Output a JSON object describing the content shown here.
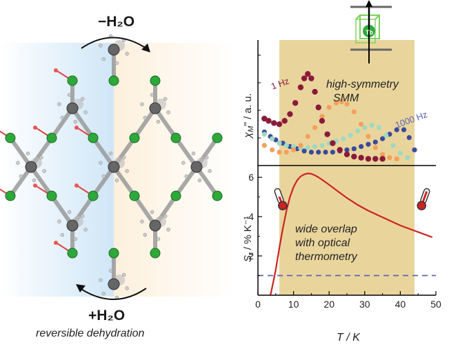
{
  "left_panel": {
    "top_label": "−H₂O",
    "bottom_label": "+H₂O",
    "caption": "reversible dehydration"
  },
  "ion_label": "Tb",
  "annotations": {
    "smm_line1": "high-symmetry",
    "smm_line2": "SMM",
    "overlap_line1": "wide overlap",
    "overlap_line2": "with optical",
    "overlap_line3": "thermometry"
  },
  "colors": {
    "highlight_band": "#e9d59c",
    "series_1hz": "#8b1a3a",
    "series_orange": "#f4a05a",
    "series_teal": "#9ed9c0",
    "series_1000hz": "#3b4a9c",
    "sensitivity_curve": "#cc2222",
    "reference_line": "#5a64b4",
    "water_side": "#d8ebf8",
    "dehydrated_side": "#fdf3e3",
    "metal_node": "#2ea83a",
    "linker_node": "#666666"
  },
  "chart_data": [
    {
      "type": "scatter",
      "ylabel": "χM'' / a. u.",
      "ylabel_main": "χ",
      "ylabel_sub": "M",
      "ylabel_rest": "'' / a. u.",
      "xlim": [
        0,
        50
      ],
      "highlight_range": [
        6,
        44
      ],
      "series": [
        {
          "name": "1 Hz",
          "color": "#8b1a3a",
          "x": [
            1.8,
            3,
            4.5,
            6,
            7.5,
            9,
            10.5,
            12,
            13,
            14,
            15,
            16,
            17,
            18,
            19.5,
            21,
            23,
            25,
            27,
            29,
            31,
            33,
            35
          ],
          "y": [
            0.42,
            0.4,
            0.38,
            0.37,
            0.4,
            0.46,
            0.56,
            0.7,
            0.78,
            0.82,
            0.78,
            0.66,
            0.52,
            0.4,
            0.28,
            0.2,
            0.14,
            0.1,
            0.08,
            0.07,
            0.06,
            0.06,
            0.06
          ]
        },
        {
          "name": "",
          "color": "#f4a05a",
          "x": [
            1.8,
            4,
            6,
            8,
            10,
            12,
            14,
            16,
            18,
            20,
            22,
            23.5,
            25,
            27,
            29,
            31,
            33,
            35,
            37,
            39
          ],
          "y": [
            0.18,
            0.14,
            0.12,
            0.12,
            0.14,
            0.18,
            0.26,
            0.34,
            0.44,
            0.52,
            0.56,
            0.57,
            0.55,
            0.48,
            0.37,
            0.26,
            0.16,
            0.1,
            0.07,
            0.06
          ]
        },
        {
          "name": "",
          "color": "#9ed9c0",
          "x": [
            1.8,
            4,
            6,
            8,
            10,
            12,
            14,
            16,
            18,
            20,
            22,
            24,
            26,
            28,
            30,
            32,
            34,
            36,
            38,
            40,
            42
          ],
          "y": [
            0.28,
            0.24,
            0.2,
            0.18,
            0.17,
            0.16,
            0.16,
            0.17,
            0.18,
            0.2,
            0.22,
            0.24,
            0.27,
            0.31,
            0.34,
            0.36,
            0.34,
            0.27,
            0.18,
            0.11,
            0.07
          ]
        },
        {
          "name": "1000 Hz",
          "color": "#3b4a9c",
          "x": [
            1.8,
            3.5,
            5,
            7,
            9,
            11,
            13,
            15,
            17,
            19,
            21,
            23,
            25,
            27,
            29,
            31,
            33,
            35,
            37,
            39,
            41,
            42.5,
            44
          ],
          "y": [
            0.3,
            0.26,
            0.23,
            0.2,
            0.17,
            0.15,
            0.13,
            0.12,
            0.12,
            0.12,
            0.12,
            0.13,
            0.14,
            0.15,
            0.17,
            0.19,
            0.21,
            0.24,
            0.28,
            0.32,
            0.32,
            0.25,
            0.14
          ]
        }
      ]
    },
    {
      "type": "line",
      "xlabel": "T / K",
      "ylabel": "Sr / % K⁻¹",
      "ylabel_main": "S",
      "ylabel_sub": "r",
      "ylabel_rest": " / % K⁻¹",
      "xlim": [
        0,
        50
      ],
      "ylim": [
        0,
        6.6
      ],
      "xticks": [
        "0",
        "10",
        "20",
        "30",
        "40",
        "50"
      ],
      "yticks": [
        "2",
        "4",
        "6"
      ],
      "highlight_range": [
        6,
        44
      ],
      "curve": {
        "x": [
          3.5,
          4,
          5,
          6,
          7,
          8,
          9,
          10,
          11,
          12,
          13,
          14,
          15,
          16,
          17,
          18,
          20,
          22,
          25,
          28,
          31,
          34,
          37,
          40,
          43,
          46,
          49
        ],
        "y": [
          0.0,
          0.4,
          1.3,
          2.4,
          3.4,
          4.3,
          5.0,
          5.5,
          5.85,
          6.05,
          6.15,
          6.2,
          6.18,
          6.1,
          6.0,
          5.88,
          5.62,
          5.35,
          4.95,
          4.6,
          4.3,
          4.05,
          3.8,
          3.55,
          3.35,
          3.15,
          2.95
        ]
      },
      "reference_line": {
        "y": 1
      }
    }
  ]
}
